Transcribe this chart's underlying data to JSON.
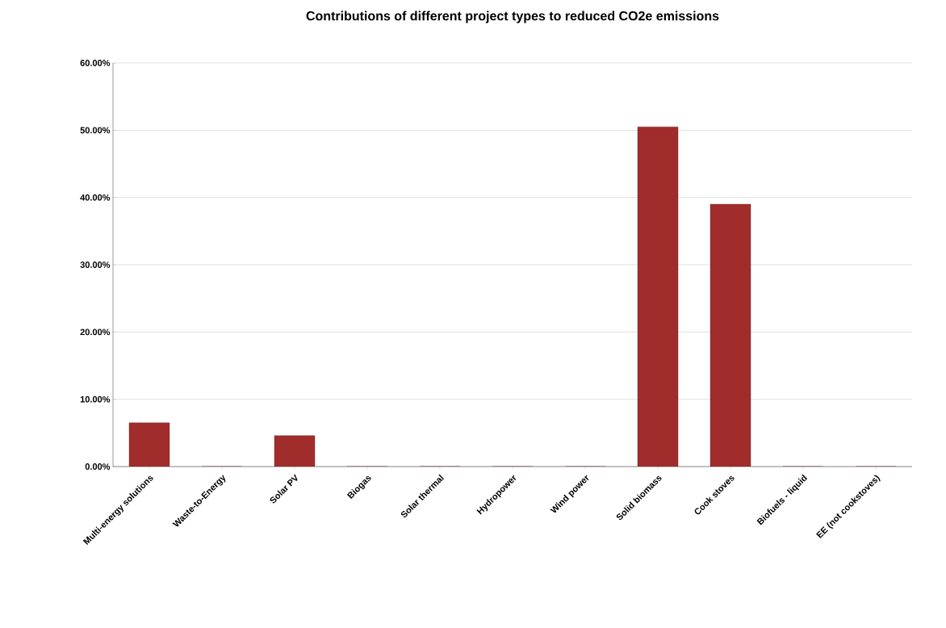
{
  "chart_data": {
    "type": "bar",
    "title": "Contributions of different project types to reduced CO2e emissions",
    "categories": [
      "Multi-energy solutions",
      "Waste-to-Energy",
      "Solar PV",
      "Biogas",
      "Solar thermal",
      "Hydropower",
      "Wind power",
      "Solid biomass",
      "Cook stoves",
      "Biofuels - liquid",
      "EE (not cookstoves)"
    ],
    "values": [
      6.5,
      0,
      4.6,
      0,
      0,
      0,
      0,
      50.5,
      39.0,
      0,
      0
    ],
    "color": "#a02c2c",
    "ylim": [
      0,
      60
    ],
    "yticks": [
      {
        "value": 0,
        "label": "0.00%"
      },
      {
        "value": 10,
        "label": "10.00%"
      },
      {
        "value": 20,
        "label": "20.00%"
      },
      {
        "value": 30,
        "label": "30.00%"
      },
      {
        "value": 40,
        "label": "40.00%"
      },
      {
        "value": 50,
        "label": "50.00%"
      },
      {
        "value": 60,
        "label": "60.00%"
      }
    ],
    "grid": "y"
  }
}
